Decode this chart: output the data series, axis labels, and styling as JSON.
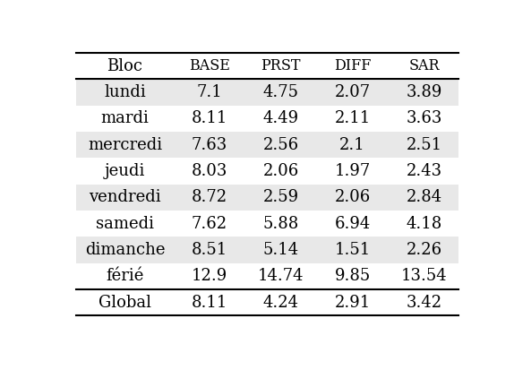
{
  "columns": [
    "Bloc",
    "BASE",
    "PRST",
    "DIFF",
    "SAR"
  ],
  "rows": [
    [
      "lundi",
      "7.1",
      "4.75",
      "2.07",
      "3.89"
    ],
    [
      "mardi",
      "8.11",
      "4.49",
      "2.11",
      "3.63"
    ],
    [
      "mercredi",
      "7.63",
      "2.56",
      "2.1",
      "2.51"
    ],
    [
      "jeudi",
      "8.03",
      "2.06",
      "1.97",
      "2.43"
    ],
    [
      "vendredi",
      "8.72",
      "2.59",
      "2.06",
      "2.84"
    ],
    [
      "samedi",
      "7.62",
      "5.88",
      "6.94",
      "4.18"
    ],
    [
      "dimanche",
      "8.51",
      "5.14",
      "1.51",
      "2.26"
    ],
    [
      "férié",
      "12.9",
      "14.74",
      "9.85",
      "13.54"
    ]
  ],
  "global_row": [
    "Global",
    "8.11",
    "4.24",
    "2.91",
    "3.42"
  ],
  "shaded_rows": [
    0,
    2,
    4,
    6
  ],
  "shaded_color": "#e8e8e8",
  "bg_color": "#ffffff",
  "line_color": "#000000",
  "text_color": "#000000",
  "font_size": 13,
  "header_font_size": 11.5
}
